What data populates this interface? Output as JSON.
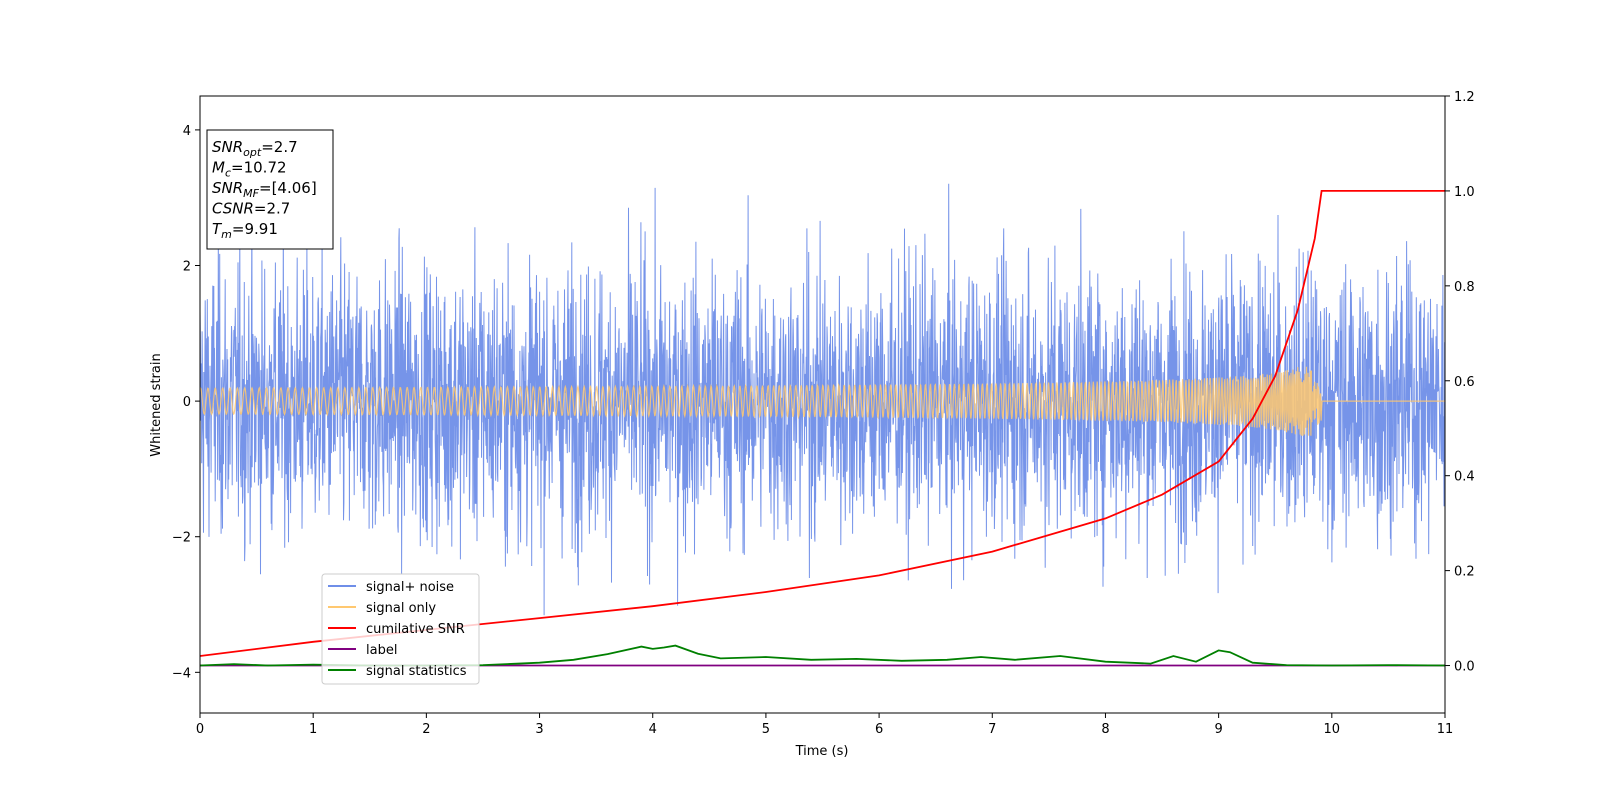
{
  "chart_data": {
    "type": "line",
    "xlabel": "Time (s)",
    "ylabel": "Whitened strain",
    "xlim": [
      0,
      11
    ],
    "ylim_left": [
      -4.6,
      4.5
    ],
    "ylim_right": [
      -0.1,
      1.2
    ],
    "xticks": [
      "0",
      "1",
      "2",
      "3",
      "4",
      "5",
      "6",
      "7",
      "8",
      "9",
      "10",
      "11"
    ],
    "yticks_left": [
      "4",
      "2",
      "0",
      "−2",
      "−4"
    ],
    "yticks_right": [
      "1.2",
      "1.0",
      "0.8",
      "0.6",
      "0.4",
      "0.2",
      "0.0"
    ],
    "grid": false,
    "legend_position": "lower-left",
    "series": [
      {
        "name": "signal+ noise",
        "axis": "left",
        "color": "#6f8ee8",
        "description": "white noise, std approx 1.0, peaks approx ±3.4"
      },
      {
        "name": "signal only",
        "axis": "left",
        "color": "#ffc870",
        "description": "chirp, amplitude grows to approx 0.35 at merger t=9.91, then 0"
      },
      {
        "name": "cumilative SNR",
        "axis": "right",
        "x": [
          0,
          1,
          2,
          3,
          4,
          5,
          6,
          7,
          8,
          8.5,
          9,
          9.3,
          9.5,
          9.7,
          9.85,
          9.91,
          11
        ],
        "y": [
          0.02,
          0.05,
          0.075,
          0.1,
          0.125,
          0.155,
          0.19,
          0.24,
          0.31,
          0.36,
          0.43,
          0.52,
          0.61,
          0.75,
          0.9,
          1.0,
          1.0
        ],
        "color": "#ff0000"
      },
      {
        "name": "label",
        "axis": "right",
        "x": [
          0,
          11
        ],
        "y": [
          0.0,
          0.0
        ],
        "color": "#800080"
      },
      {
        "name": "signal statistics",
        "axis": "right",
        "x": [
          0,
          0.3,
          0.6,
          1,
          1.5,
          2,
          2.5,
          3,
          3.3,
          3.6,
          3.9,
          4.0,
          4.1,
          4.2,
          4.4,
          4.6,
          5.0,
          5.4,
          5.8,
          6.2,
          6.6,
          6.9,
          7.2,
          7.6,
          8.0,
          8.4,
          8.6,
          8.8,
          9.0,
          9.1,
          9.3,
          9.6,
          10,
          10.5,
          11
        ],
        "y": [
          0.0,
          0.003,
          0.0,
          0.002,
          0.0,
          0.0,
          0.001,
          0.006,
          0.012,
          0.024,
          0.04,
          0.035,
          0.038,
          0.042,
          0.025,
          0.015,
          0.018,
          0.012,
          0.014,
          0.01,
          0.012,
          0.018,
          0.012,
          0.02,
          0.008,
          0.004,
          0.02,
          0.008,
          0.032,
          0.028,
          0.006,
          0.001,
          0.0,
          0.001,
          0.0
        ],
        "color": "#008000"
      }
    ],
    "annotation": [
      {
        "main": "SNR",
        "sub": "opt",
        "tail": "=2.7"
      },
      {
        "main": "M",
        "sub": "c",
        "tail": "=10.72"
      },
      {
        "main": "SNR",
        "sub": "MF",
        "tail": "=[4.06]"
      },
      {
        "main": "CSNR",
        "sub": "",
        "tail": "=2.7"
      },
      {
        "main": "T",
        "sub": "m",
        "tail": "=9.91"
      }
    ]
  }
}
